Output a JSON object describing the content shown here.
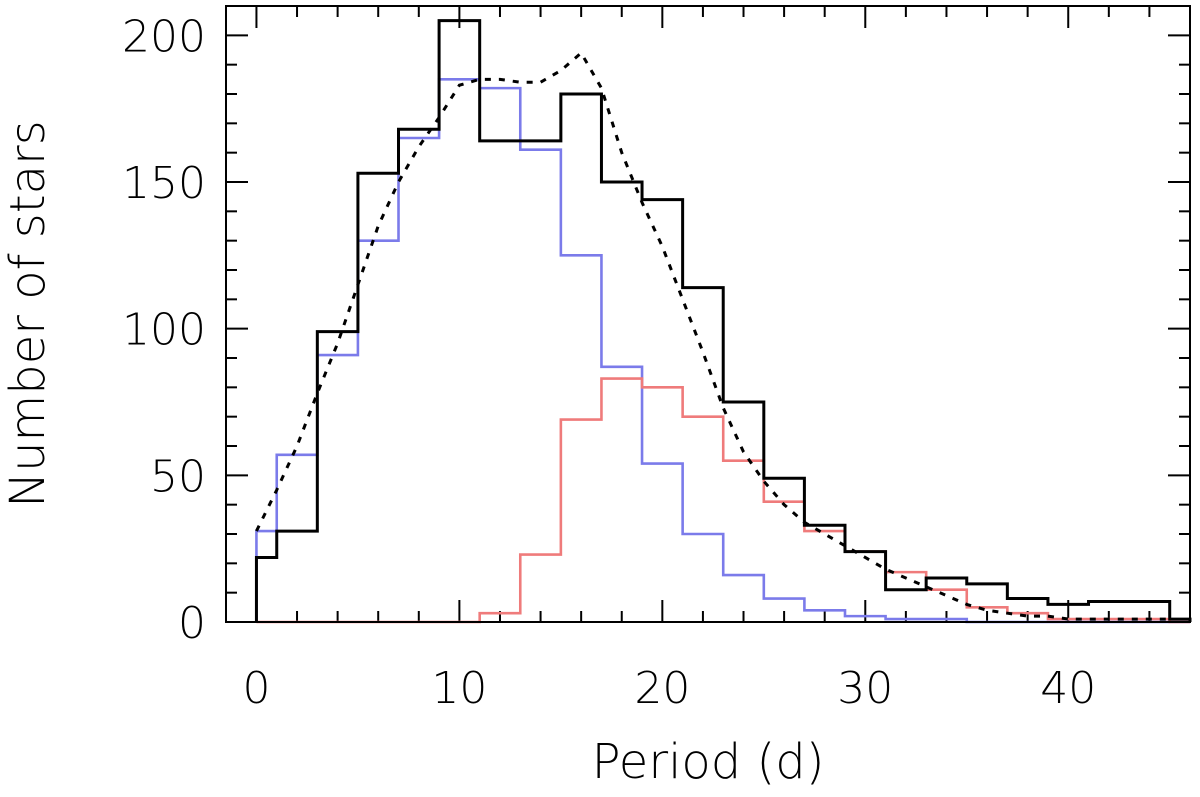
{
  "chart_data": {
    "type": "line",
    "title": "",
    "xlabel": "Period (d)",
    "ylabel": "Number of stars",
    "xlim": [
      -1.5,
      46
    ],
    "ylim": [
      0,
      210
    ],
    "xticks": [
      0,
      10,
      20,
      30,
      40
    ],
    "yticks": [
      0,
      50,
      100,
      150,
      200
    ],
    "xtick_labels": [
      "0",
      "10",
      "20",
      "30",
      "40"
    ],
    "ytick_labels": [
      "0",
      "50",
      "100",
      "150",
      "200"
    ],
    "grid": false,
    "legend": "none",
    "bin_edges": [
      0,
      1,
      3,
      5,
      7,
      9,
      11,
      13,
      15,
      17,
      19,
      21,
      23,
      25,
      27,
      29,
      31,
      33,
      35,
      37,
      39,
      41,
      43,
      45,
      46
    ],
    "series": [
      {
        "style": "histogram",
        "color": "#000000",
        "values": [
          22,
          31,
          99,
          153,
          168,
          205,
          164,
          164,
          180,
          150,
          144,
          114,
          75,
          49,
          33,
          24,
          11,
          15,
          13,
          8,
          6,
          7,
          7,
          1
        ]
      },
      {
        "style": "histogram",
        "color": "#7b7bea",
        "values": [
          31,
          57,
          91,
          130,
          165,
          185,
          182,
          161,
          125,
          87,
          54,
          30,
          16,
          8,
          4,
          2,
          1,
          1,
          0,
          0,
          0,
          0,
          0,
          0
        ]
      },
      {
        "style": "histogram",
        "color": "#ef7b7b",
        "values": [
          0,
          0,
          0,
          0,
          0,
          0,
          3,
          23,
          69,
          83,
          80,
          70,
          55,
          41,
          31,
          24,
          17,
          11,
          5,
          3,
          1,
          1,
          1,
          0
        ]
      },
      {
        "style": "dotted",
        "color": "#000000",
        "x": [
          0,
          1,
          2,
          3,
          4,
          5,
          6,
          7,
          8,
          9,
          10,
          11,
          12,
          13,
          14,
          15,
          16,
          17,
          18,
          19,
          20,
          21,
          22,
          23,
          24,
          25,
          26,
          27,
          28,
          29,
          30,
          31,
          32,
          33,
          34,
          35,
          36,
          37,
          38,
          39,
          40,
          41,
          42,
          43,
          44,
          45
        ],
        "y": [
          31,
          45,
          60,
          78,
          95,
          115,
          135,
          150,
          162,
          172,
          183,
          185,
          185,
          184,
          184,
          188,
          194,
          182,
          160,
          143,
          128,
          110,
          92,
          73,
          58,
          48,
          40,
          34,
          30,
          26,
          22,
          18,
          15,
          12,
          9,
          6,
          4,
          3,
          2,
          2,
          1,
          1,
          1,
          1,
          1,
          1
        ]
      }
    ]
  }
}
